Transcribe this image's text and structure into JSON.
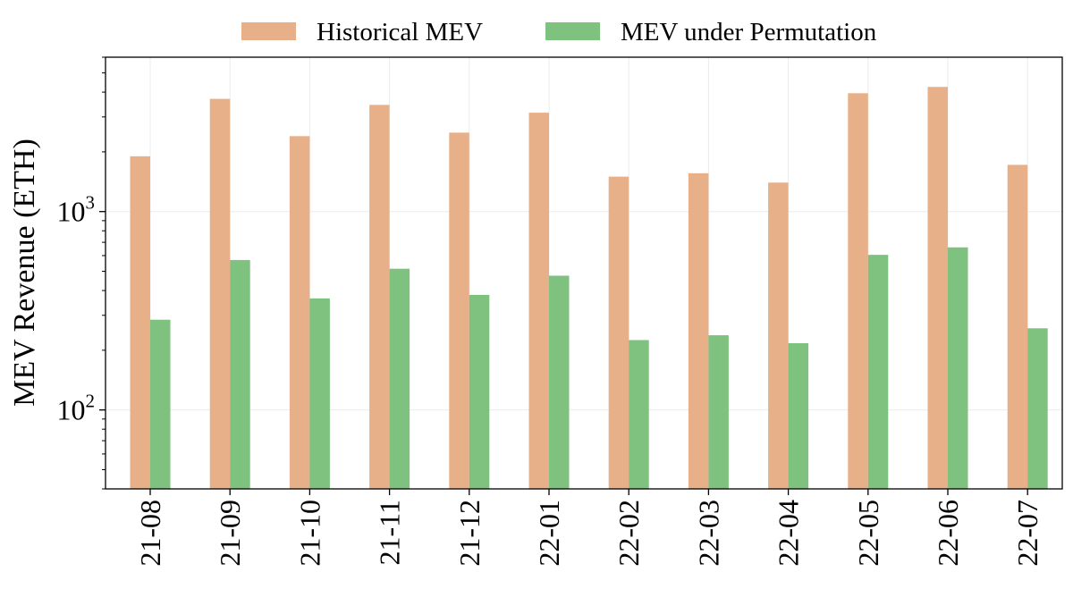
{
  "chart_data": {
    "type": "bar",
    "categories": [
      "21-08",
      "21-09",
      "21-10",
      "21-11",
      "21-12",
      "22-01",
      "22-02",
      "22-03",
      "22-04",
      "22-05",
      "22-06",
      "22-07"
    ],
    "series": [
      {
        "name": "Historical MEV",
        "color": "#e8b088",
        "values": [
          1900,
          3700,
          2400,
          3450,
          2500,
          3150,
          1500,
          1560,
          1400,
          3950,
          4250,
          1720
        ]
      },
      {
        "name": "MEV under Permutation",
        "color": "#7fc17f",
        "values": [
          285,
          570,
          365,
          515,
          380,
          475,
          225,
          238,
          217,
          605,
          660,
          258
        ]
      }
    ],
    "title": "",
    "xlabel": "",
    "ylabel": "MEV Revenue (ETH)",
    "yscale": "log",
    "ylim": [
      40,
      6000
    ],
    "yticks": [
      {
        "value": 100,
        "base": "10",
        "exp": "2"
      },
      {
        "value": 1000,
        "base": "10",
        "exp": "3"
      }
    ],
    "grid": true,
    "legend": "top-center"
  }
}
